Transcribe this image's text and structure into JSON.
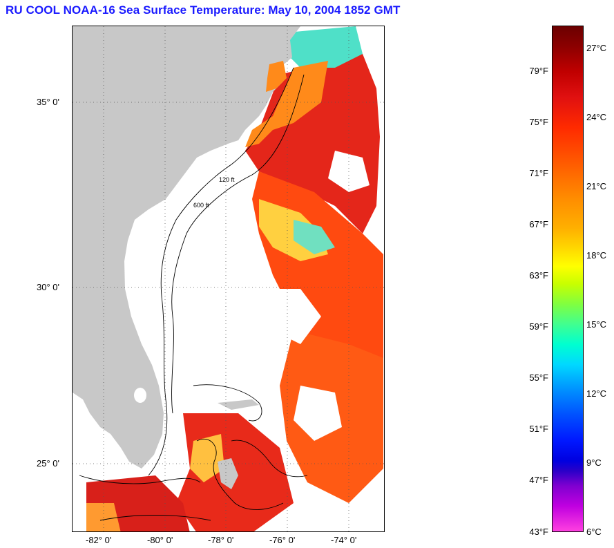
{
  "title": "RU COOL  NOAA-16  Sea Surface Temperature:  May 10, 2004 1852 GMT",
  "map": {
    "latitude_labels": [
      "35° 0'",
      "30° 0'",
      "25° 0'"
    ],
    "longitude_labels": [
      "-82° 0'",
      "-80° 0'",
      "-78° 0'",
      "-76° 0'",
      "-74° 0'"
    ],
    "isobath_labels": [
      "120 ft",
      "600 ft"
    ],
    "colors": {
      "land": "#c8c8c8",
      "cloud_mask": "#ffffff",
      "grid": "#555555"
    }
  },
  "colorbar": {
    "fahrenheit_ticks": [
      "79°F",
      "75°F",
      "71°F",
      "67°F",
      "63°F",
      "59°F",
      "55°F",
      "51°F",
      "47°F",
      "43°F"
    ],
    "celsius_ticks": [
      "27°C",
      "24°C",
      "21°C",
      "18°C",
      "15°C",
      "12°C",
      "9°C",
      "6°C"
    ]
  }
}
